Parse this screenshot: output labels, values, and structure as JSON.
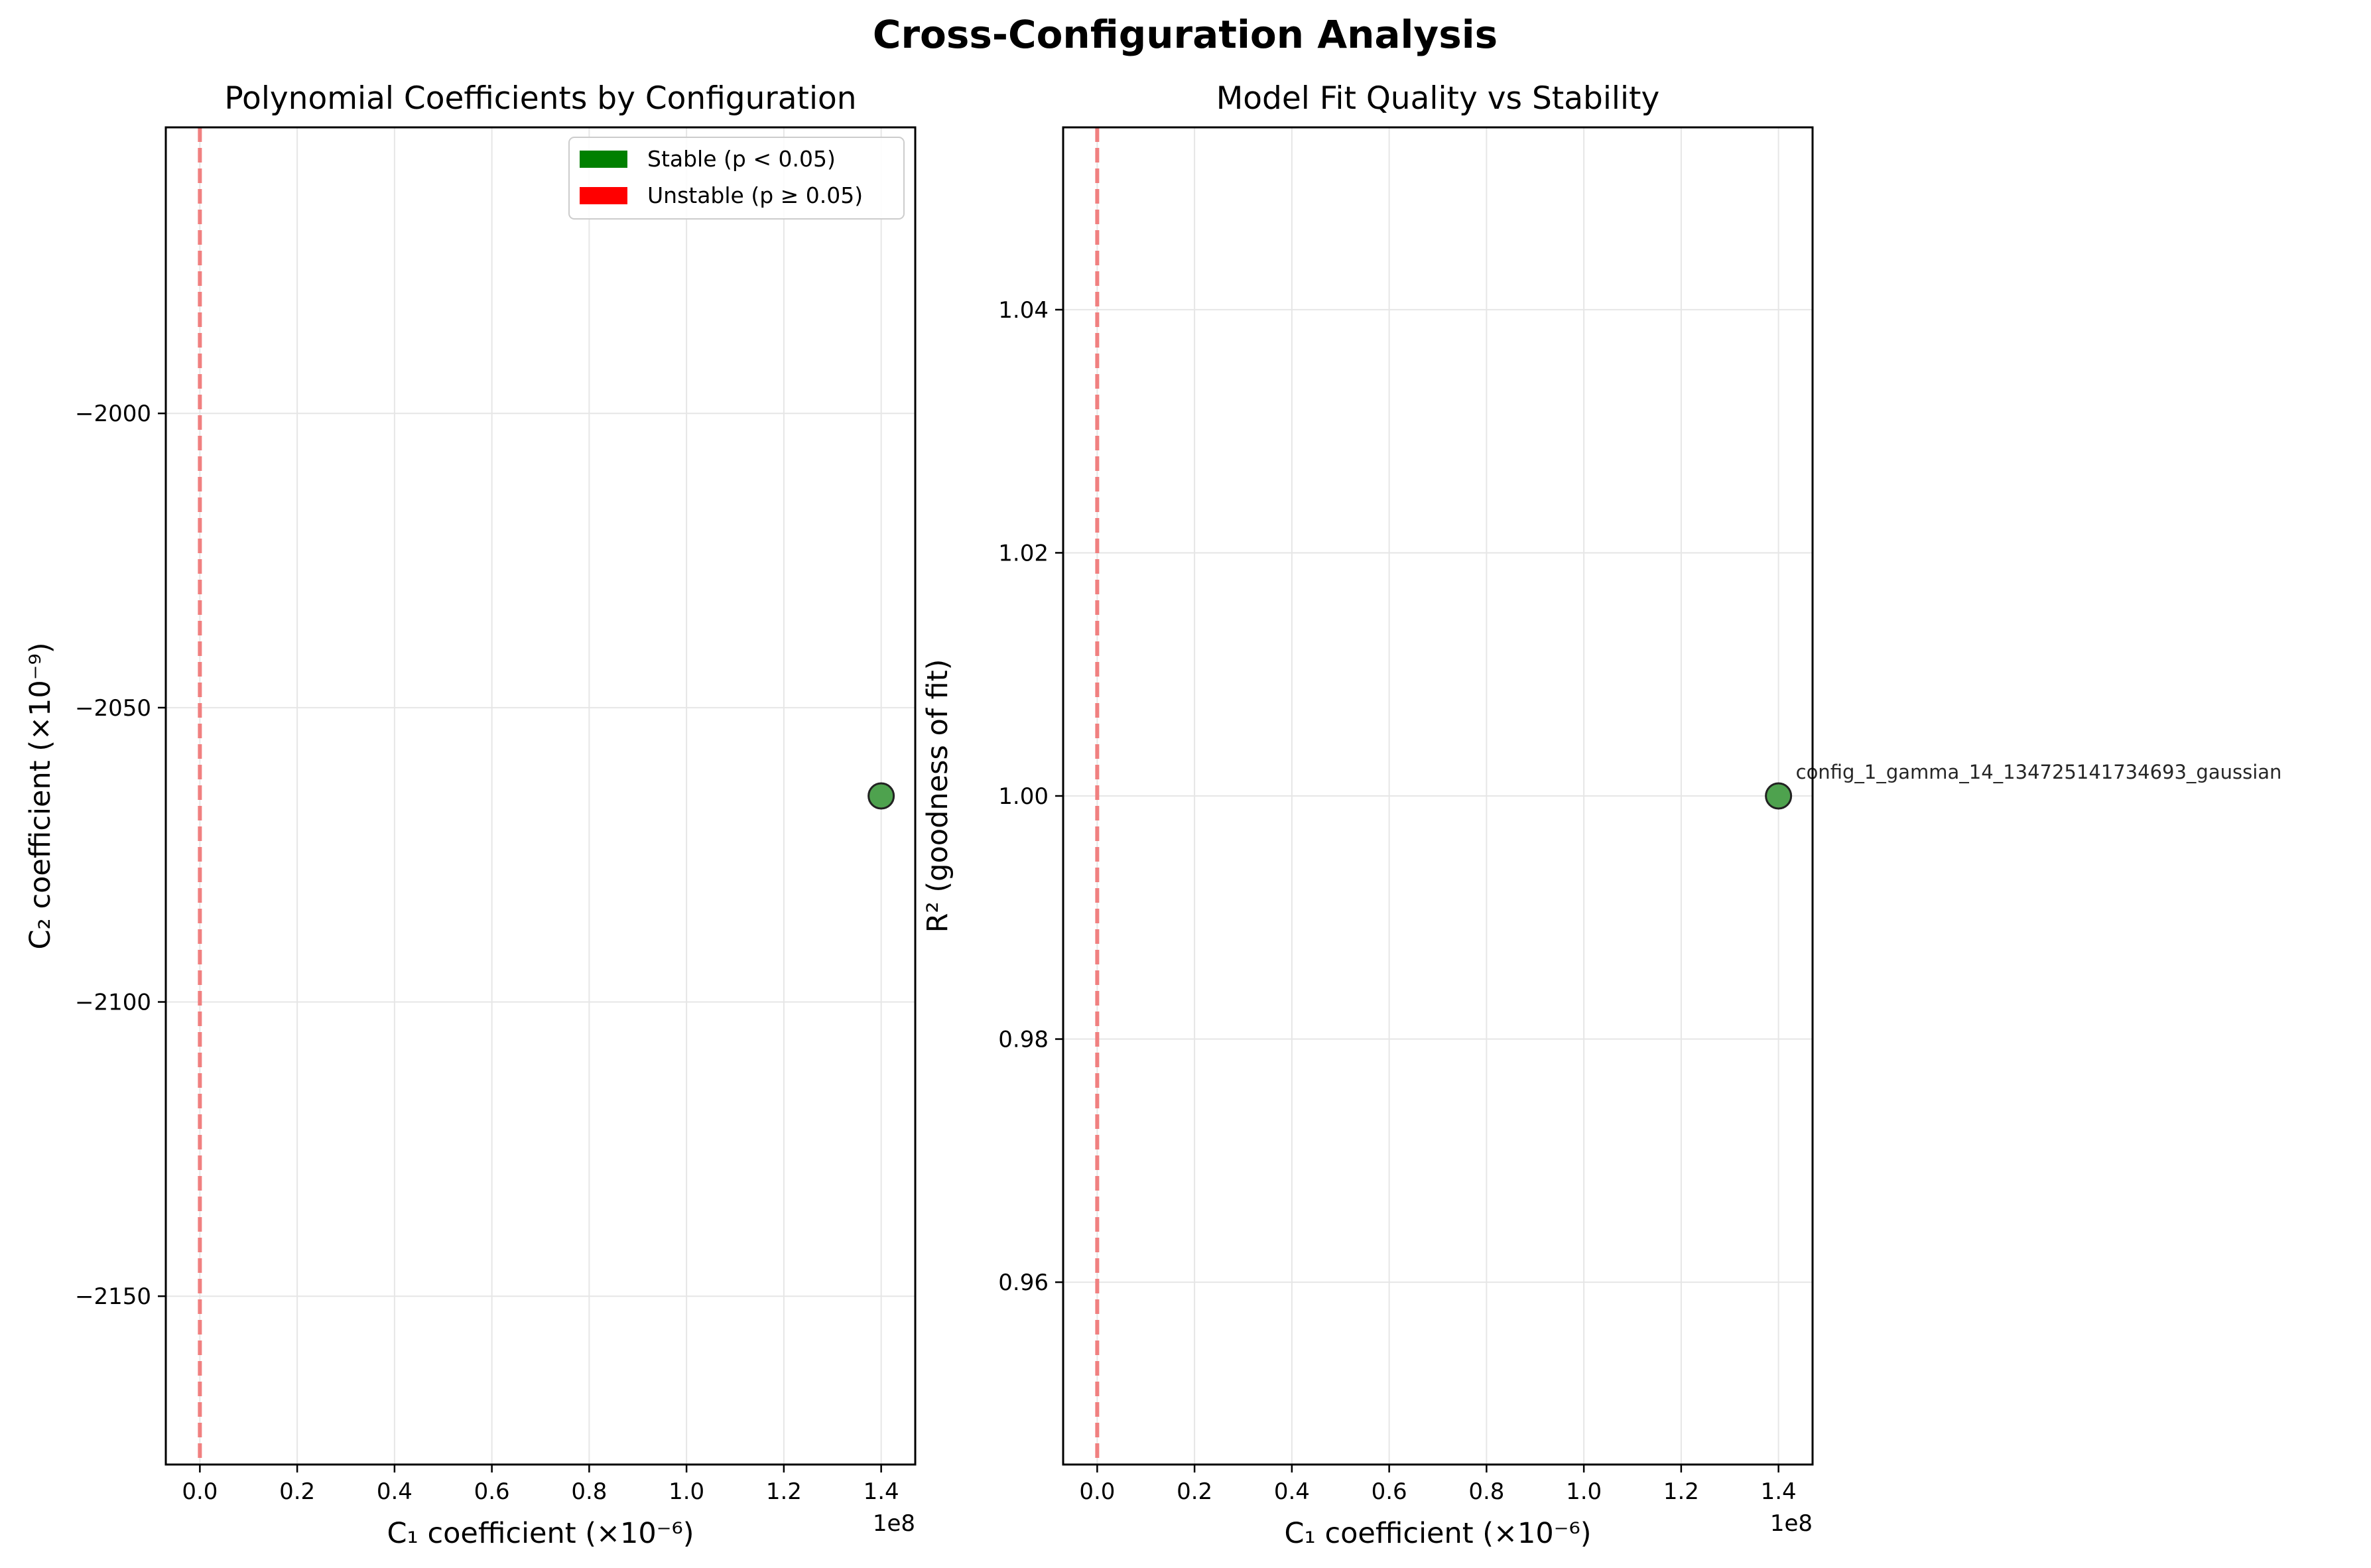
{
  "figure": {
    "title": "Cross-Configuration Analysis"
  },
  "colors": {
    "stable": "#008000",
    "unstable": "#ff0000",
    "point_fill": "#4ea24e",
    "refline": "#f08080",
    "grid": "#e6e6e6"
  },
  "chart_data": [
    {
      "type": "scatter",
      "title": "Polynomial Coefficients by Configuration",
      "xlabel": "C₁ coefficient (×10⁻⁶)",
      "ylabel": "C₂ coefficient (×10⁻⁹)",
      "x_offset_label": "1e8",
      "xlim": [
        -7000000,
        147000000
      ],
      "ylim": [
        -2178.6,
        -1951.4
      ],
      "xticks": [
        0,
        20000000,
        40000000,
        60000000,
        80000000,
        100000000,
        120000000,
        140000000
      ],
      "xtick_labels": [
        "0.0",
        "0.2",
        "0.4",
        "0.6",
        "0.8",
        "1.0",
        "1.2",
        "1.4"
      ],
      "yticks": [
        -2150,
        -2100,
        -2050,
        -2000
      ],
      "ytick_labels": [
        "−2150",
        "−2100",
        "−2050",
        "−2000"
      ],
      "grid": true,
      "vline_x": 0,
      "legend": {
        "placement": "top-right",
        "entries": [
          {
            "label": "Stable (p < 0.05)",
            "color": "#008000"
          },
          {
            "label": "Unstable (p ≥ 0.05)",
            "color": "#ff0000"
          }
        ]
      },
      "points": [
        {
          "x": 140000000,
          "y": -2065,
          "stable": true
        }
      ]
    },
    {
      "type": "scatter",
      "title": "Model Fit Quality vs Stability",
      "xlabel": "C₁ coefficient (×10⁻⁶)",
      "ylabel": "R² (goodness of fit)",
      "x_offset_label": "1e8",
      "xlim": [
        -7000000,
        147000000
      ],
      "ylim": [
        0.945,
        1.055
      ],
      "xticks": [
        0,
        20000000,
        40000000,
        60000000,
        80000000,
        100000000,
        120000000,
        140000000
      ],
      "xtick_labels": [
        "0.0",
        "0.2",
        "0.4",
        "0.6",
        "0.8",
        "1.0",
        "1.2",
        "1.4"
      ],
      "yticks": [
        0.96,
        0.98,
        1.0,
        1.02,
        1.04
      ],
      "ytick_labels": [
        "0.96",
        "0.98",
        "1.00",
        "1.02",
        "1.04"
      ],
      "grid": true,
      "vline_x": 0,
      "points": [
        {
          "x": 140000000,
          "y": 1.0,
          "stable": true,
          "label": "config_1_gamma_14_134725141734693_gaussian"
        }
      ]
    }
  ]
}
